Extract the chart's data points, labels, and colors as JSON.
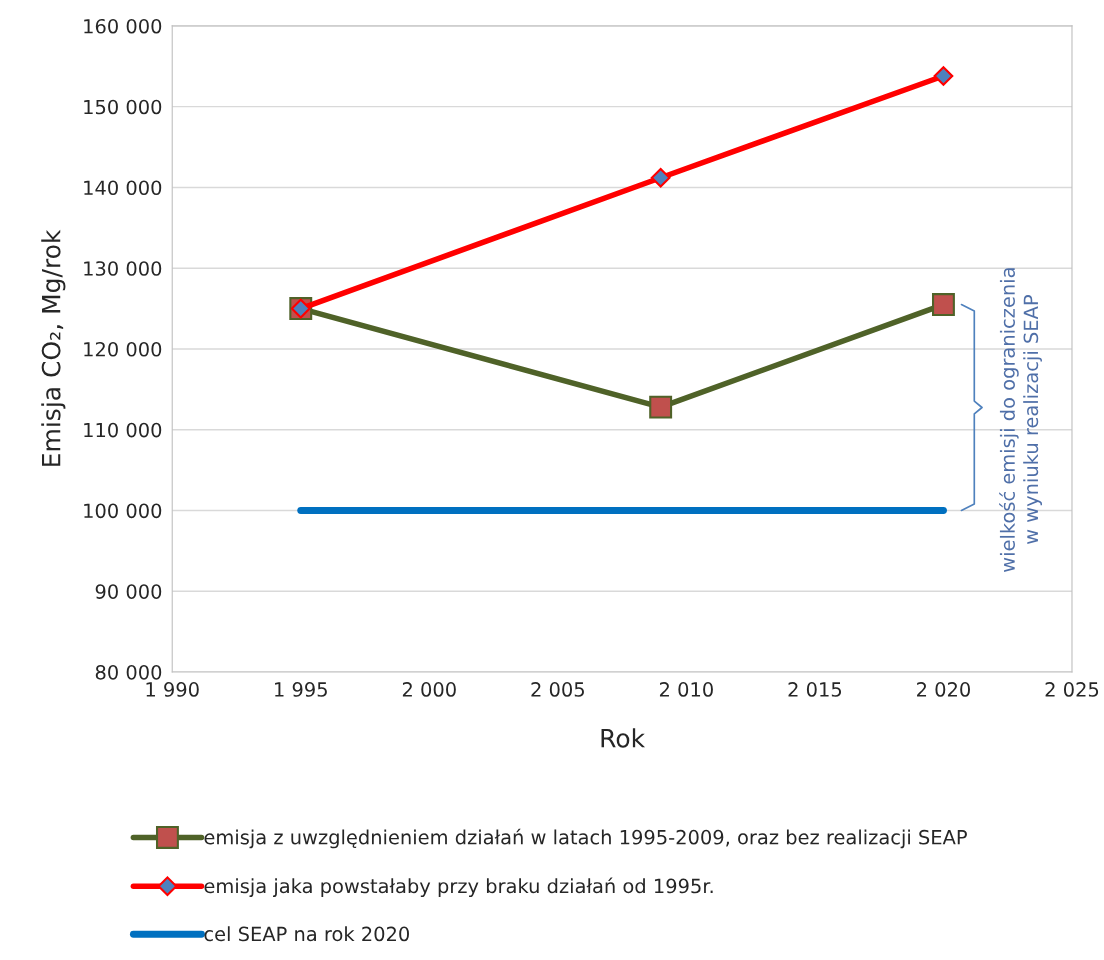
{
  "chart_data": {
    "type": "line",
    "xlabel": "Rok",
    "ylabel": "Emisja CO₂, Mg/rok",
    "x": [
      1995,
      2009,
      2020
    ],
    "series": [
      {
        "name": "emisja z uwzględnieniem działań w latach 1995-2009, oraz bez realizacji SEAP",
        "color": "#4f6228",
        "marker": "square",
        "values": [
          125000,
          112800,
          125500
        ]
      },
      {
        "name": "emisja jaka powstałaby przy braku działań od 1995r.",
        "color": "#ff0000",
        "marker": "diamond",
        "values": [
          125000,
          141200,
          153800
        ]
      },
      {
        "name": "cel SEAP na rok 2020",
        "color": "#0070c0",
        "marker": "none",
        "values": [
          100000,
          100000,
          100000
        ]
      }
    ],
    "xlim": [
      1990,
      2025
    ],
    "xticks": [
      {
        "value": 1990,
        "label": "1 990"
      },
      {
        "value": 1995,
        "label": "1 995"
      },
      {
        "value": 2000,
        "label": "2 000"
      },
      {
        "value": 2005,
        "label": "2 005"
      },
      {
        "value": 2010,
        "label": "2 010"
      },
      {
        "value": 2015,
        "label": "2 015"
      },
      {
        "value": 2020,
        "label": "2 020"
      },
      {
        "value": 2025,
        "label": "2 025"
      }
    ],
    "ylim": [
      80000,
      160000
    ],
    "yticks": [
      {
        "value": 80000,
        "label": "80 000"
      },
      {
        "value": 90000,
        "label": "90 000"
      },
      {
        "value": 100000,
        "label": "100 000"
      },
      {
        "value": 110000,
        "label": "110 000"
      },
      {
        "value": 120000,
        "label": "120 000"
      },
      {
        "value": 130000,
        "label": "130 000"
      },
      {
        "value": 140000,
        "label": "140 000"
      },
      {
        "value": 150000,
        "label": "150 000"
      },
      {
        "value": 160000,
        "label": "160 000"
      }
    ],
    "grid": "y",
    "legend": "bottom",
    "annotations": [
      "wielkość emisji do ograniczenia\nw wyniuku realizacji SEAP"
    ]
  }
}
